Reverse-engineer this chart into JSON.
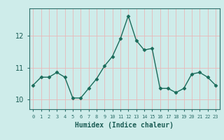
{
  "xlabel": "Humidex (Indice chaleur)",
  "x": [
    0,
    1,
    2,
    3,
    4,
    5,
    6,
    7,
    8,
    9,
    10,
    11,
    12,
    13,
    14,
    15,
    16,
    17,
    18,
    19,
    20,
    21,
    22,
    23
  ],
  "y": [
    10.45,
    10.7,
    10.7,
    10.85,
    10.7,
    10.05,
    10.05,
    10.35,
    10.65,
    11.05,
    11.35,
    11.9,
    12.62,
    11.85,
    11.55,
    11.6,
    10.35,
    10.35,
    10.22,
    10.35,
    10.8,
    10.85,
    10.7,
    10.45
  ],
  "line_color": "#1a6b5a",
  "bg_color": "#ceecea",
  "grid_color": "#e8b8b8",
  "axis_color": "#2d6e6a",
  "tick_label_color": "#1a5c54",
  "xlabel_color": "#1a5c54",
  "ylim": [
    9.7,
    12.85
  ],
  "yticks": [
    10,
    11,
    12
  ],
  "markersize": 2.5,
  "linewidth": 1.0
}
